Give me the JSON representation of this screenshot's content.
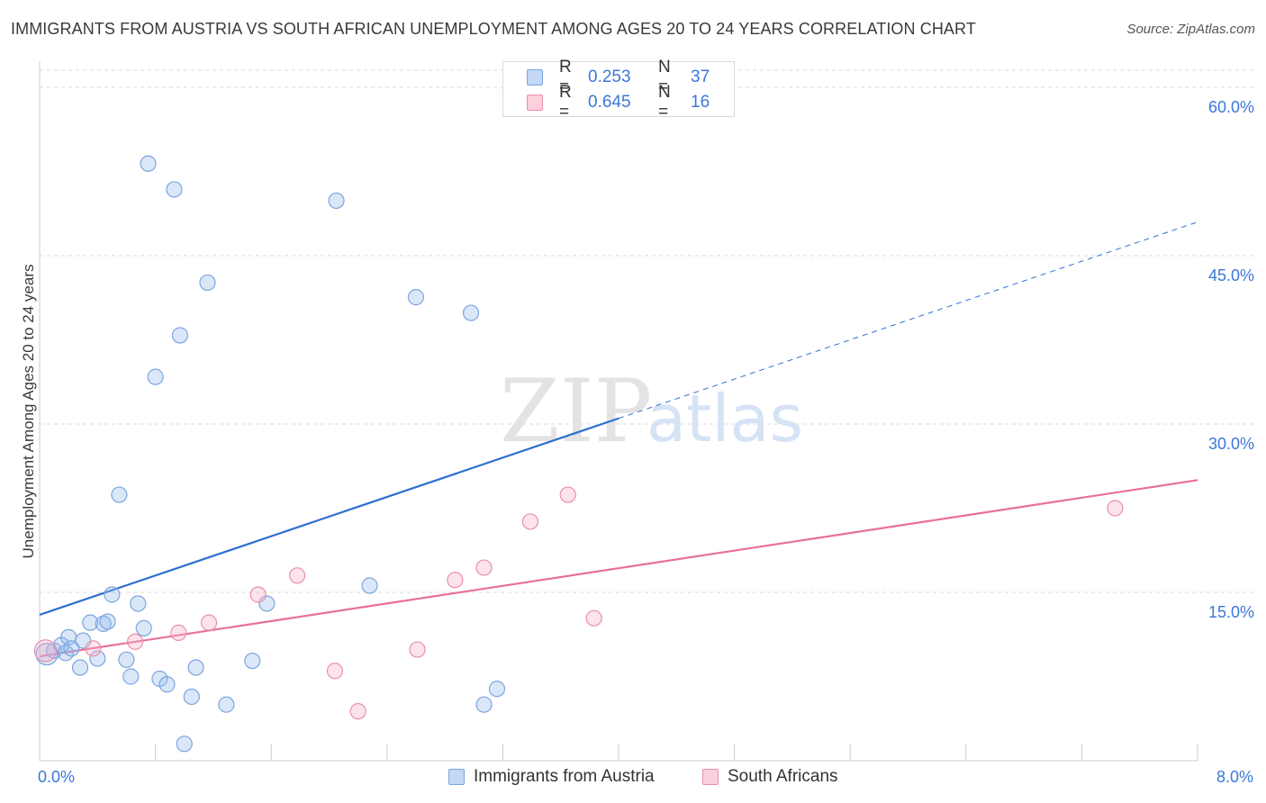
{
  "title": "IMMIGRANTS FROM AUSTRIA VS SOUTH AFRICAN UNEMPLOYMENT AMONG AGES 20 TO 24 YEARS CORRELATION CHART",
  "source": "Source: ZipAtlas.com",
  "watermark": {
    "zip": "ZIP",
    "atlas": "atlas"
  },
  "legend": {
    "series": [
      {
        "r_label": "R =",
        "r_value": "0.253",
        "n_label": "N =",
        "n_value": "37",
        "fill": "#c3d8f5",
        "stroke": "#7ba5e0"
      },
      {
        "r_label": "R =",
        "r_value": "0.645",
        "n_label": "N =",
        "n_value": "16",
        "fill": "#fbd0dc",
        "stroke": "#e890aa"
      }
    ]
  },
  "bottom_legend": {
    "items": [
      {
        "label": "Immigrants from Austria"
      },
      {
        "label": "South Africans"
      }
    ]
  },
  "colors": {
    "blue_line": "#2f6fd1",
    "pink_line": "#e8709a",
    "blue_point_fill": "rgba(150,185,235,0.35)",
    "blue_point_stroke": "#7ba5e0",
    "pink_point_fill": "rgba(245,175,200,0.35)",
    "pink_point_stroke": "#e890aa",
    "grid": "#d8d8d8",
    "tick_text": "#3b78d8"
  },
  "chart_data": {
    "type": "scatter",
    "title": "IMMIGRANTS FROM AUSTRIA VS SOUTH AFRICAN UNEMPLOYMENT AMONG AGES 20 TO 24 YEARS CORRELATION CHART",
    "xlabel": "",
    "ylabel": "Unemployment Among Ages 20 to 24 years",
    "xlim": [
      0,
      8
    ],
    "ylim": [
      0,
      60
    ],
    "x_tick_labels": [
      {
        "value": 0,
        "label": "0.0%"
      },
      {
        "value": 8,
        "label": "8.0%"
      }
    ],
    "y_tick_labels": [
      {
        "value": 15,
        "label": "15.0%"
      },
      {
        "value": 30,
        "label": "30.0%"
      },
      {
        "value": 45,
        "label": "45.0%"
      },
      {
        "value": 60,
        "label": "60.0%"
      }
    ],
    "x_minor_ticks": [
      0.8,
      1.6,
      2.4,
      3.2,
      4.0,
      4.8,
      5.6,
      6.4,
      7.2,
      8.0
    ],
    "series": [
      {
        "name": "Immigrants from Austria",
        "r": 0.253,
        "n": 37,
        "points": [
          [
            0.05,
            9.5
          ],
          [
            0.1,
            9.8
          ],
          [
            0.15,
            10.3
          ],
          [
            0.18,
            9.6
          ],
          [
            0.2,
            11.0
          ],
          [
            0.22,
            10.0
          ],
          [
            0.28,
            8.3
          ],
          [
            0.3,
            10.7
          ],
          [
            0.35,
            12.3
          ],
          [
            0.4,
            9.1
          ],
          [
            0.44,
            12.2
          ],
          [
            0.47,
            12.4
          ],
          [
            0.5,
            14.8
          ],
          [
            0.55,
            23.7
          ],
          [
            0.6,
            9.0
          ],
          [
            0.63,
            7.5
          ],
          [
            0.68,
            14.0
          ],
          [
            0.72,
            11.8
          ],
          [
            0.75,
            53.2
          ],
          [
            0.8,
            34.2
          ],
          [
            0.83,
            7.3
          ],
          [
            0.88,
            6.8
          ],
          [
            0.93,
            50.9
          ],
          [
            0.97,
            37.9
          ],
          [
            1.0,
            1.5
          ],
          [
            1.05,
            5.7
          ],
          [
            1.08,
            8.3
          ],
          [
            1.16,
            42.6
          ],
          [
            1.29,
            5.0
          ],
          [
            1.47,
            8.9
          ],
          [
            1.57,
            14.0
          ],
          [
            2.05,
            49.9
          ],
          [
            2.28,
            15.6
          ],
          [
            2.6,
            41.3
          ],
          [
            2.98,
            39.9
          ],
          [
            3.07,
            5.0
          ],
          [
            3.16,
            6.4
          ]
        ],
        "trend": {
          "x0": 0,
          "y0": 13.0,
          "x_solid_end": 4.0,
          "x1": 8.0,
          "y1": 48.0,
          "dashed_after": 4.0
        }
      },
      {
        "name": "South Africans",
        "r": 0.645,
        "n": 16,
        "points": [
          [
            0.04,
            9.8
          ],
          [
            0.37,
            10.0
          ],
          [
            0.66,
            10.6
          ],
          [
            0.96,
            11.4
          ],
          [
            1.17,
            12.3
          ],
          [
            1.51,
            14.8
          ],
          [
            1.78,
            16.5
          ],
          [
            2.04,
            8.0
          ],
          [
            2.2,
            4.4
          ],
          [
            2.61,
            9.9
          ],
          [
            2.87,
            16.1
          ],
          [
            3.07,
            17.2
          ],
          [
            3.39,
            21.3
          ],
          [
            3.65,
            23.7
          ],
          [
            3.83,
            12.7
          ],
          [
            7.43,
            22.5
          ]
        ],
        "trend": {
          "x0": 0,
          "y0": 9.3,
          "x1": 8.0,
          "y1": 25.0
        }
      }
    ]
  }
}
